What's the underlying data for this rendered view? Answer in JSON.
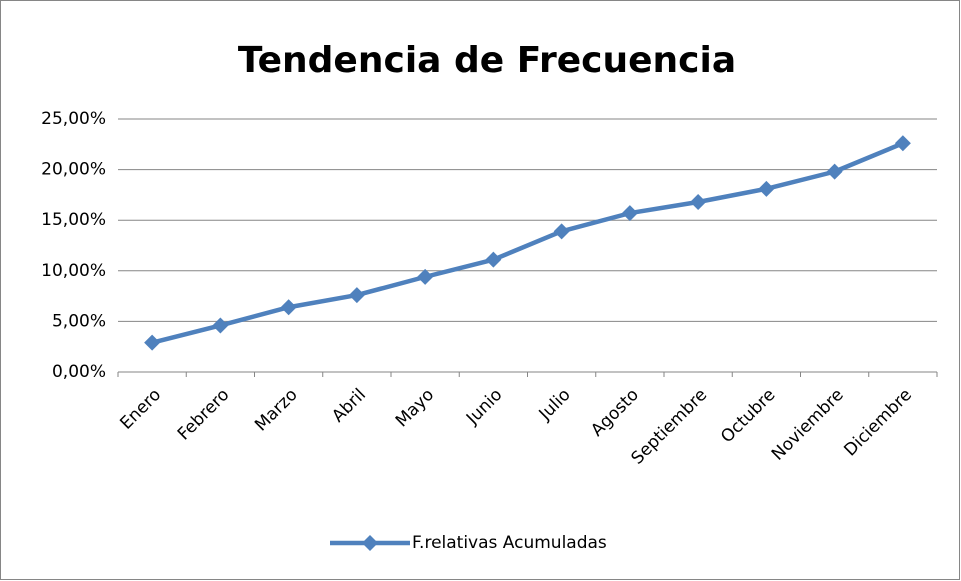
{
  "chart_data": {
    "type": "line",
    "title": "Tendencia de Frecuencia",
    "categories": [
      "Enero",
      "Febrero",
      "Marzo",
      "Abril",
      "Mayo",
      "Junio",
      "Julio",
      "Agosto",
      "Septiembre",
      "Octubre",
      "Noviembre",
      "Diciembre"
    ],
    "series": [
      {
        "name": "F.relativas Acumuladas",
        "color": "#4f81bd",
        "values": [
          2.9,
          4.6,
          6.4,
          7.6,
          9.4,
          11.1,
          13.9,
          15.7,
          16.8,
          18.1,
          19.8,
          22.6
        ]
      }
    ],
    "ylim": [
      0,
      25
    ],
    "yticks": [
      {
        "value": 0,
        "label": "0,00%"
      },
      {
        "value": 5,
        "label": "5,00%"
      },
      {
        "value": 10,
        "label": "10,00%"
      },
      {
        "value": 15,
        "label": "15,00%"
      },
      {
        "value": 20,
        "label": "20,00%"
      },
      {
        "value": 25,
        "label": "25,00%"
      }
    ],
    "grid": true,
    "legend": "bottom"
  }
}
